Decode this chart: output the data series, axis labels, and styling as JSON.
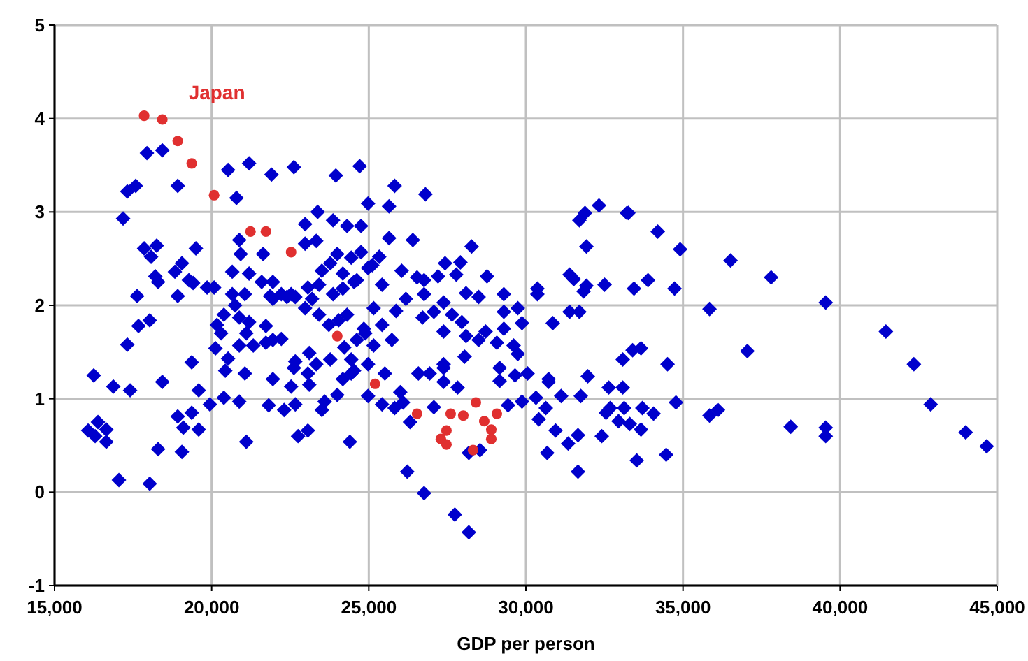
{
  "chart_data": {
    "type": "scatter",
    "xlabel": "GDP per person",
    "xlim": [
      15000,
      45000
    ],
    "xticks": [
      {
        "value": 15000,
        "label": "15,000"
      },
      {
        "value": 20000,
        "label": "20,000"
      },
      {
        "value": 25000,
        "label": "25,000"
      },
      {
        "value": 30000,
        "label": "30,000"
      },
      {
        "value": 35000,
        "label": "35,000"
      },
      {
        "value": 40000,
        "label": "40,000"
      },
      {
        "value": 45000,
        "label": "45,000"
      }
    ],
    "ylim": [
      -1,
      5
    ],
    "yticks": [
      -1,
      0,
      1,
      2,
      3,
      4,
      5
    ],
    "grid": true,
    "series": [
      {
        "color": "#0000cc",
        "marker": "diamond",
        "x": [
          17940,
          18430,
          17316,
          17583,
          18920,
          17183,
          20523,
          21191,
          21904,
          22617,
          23952,
          24710,
          20790,
          24977,
          23374,
          23863,
          20879,
          22973,
          24309,
          24754,
          17851,
          18251,
          18073,
          19499,
          20923,
          21637,
          22973,
          23329,
          23997,
          24442,
          24754,
          25111,
          23507,
          23774,
          24175,
          24531,
          18207,
          18296,
          18830,
          19053,
          19276,
          19409,
          20656,
          21191,
          21592,
          21948,
          19855,
          20078,
          20656,
          21057,
          21859,
          22216,
          22528,
          23062,
          23418,
          23863,
          24175,
          24620,
          24977,
          17628,
          18920,
          18029,
          17672,
          17316,
          16247,
          16871,
          17405,
          18430,
          19365,
          19588,
          19944,
          18920,
          19365,
          19098,
          19588,
          16069,
          16381,
          16648,
          16648,
          16292,
          18296,
          19053,
          17049,
          18029,
          21102,
          24398,
          20122,
          20523,
          20434,
          21057,
          20879,
          20389,
          21948,
          22528,
          23107,
          22661,
          22306,
          21815,
          22750,
          23062,
          23507,
          23997,
          24175,
          23596,
          24531,
          23774,
          23329,
          23062,
          22617,
          22661,
          23107,
          21726,
          21948,
          22216,
          21325,
          21102,
          20879,
          20300,
          20167,
          20389,
          20879,
          20745,
          21191,
          21726,
          21948,
          22394,
          22661,
          22973,
          23196,
          23418,
          23730,
          24042,
          24309,
          24843,
          24620,
          24220,
          24442,
          24977,
          24887,
          24442,
          24977,
          25823,
          26803,
          25645,
          32326,
          31881,
          31702,
          33217,
          31925,
          28273,
          31391,
          31524,
          32504,
          31925,
          31836,
          30366,
          30366,
          31391,
          31702,
          30856,
          29876,
          29743,
          33083,
          25645,
          26402,
          27428,
          27917,
          28763,
          29297,
          28496,
          28095,
          27783,
          27204,
          26759,
          26536,
          26046,
          25333,
          25422,
          26180,
          26759,
          27382,
          27650,
          27071,
          26714,
          25868,
          25155,
          25422,
          25734,
          25155,
          27382,
          27961,
          28095,
          28496,
          28718,
          29297,
          29609,
          29075,
          29743,
          28050,
          27382,
          29297,
          33396,
          25511,
          26580,
          26937,
          27382,
          27382,
          27828,
          26002,
          25422,
          25823,
          26091,
          27071,
          26313,
          26224,
          26759,
          27739,
          28184,
          28184,
          28540,
          29164,
          29164,
          29654,
          30054,
          30723,
          30723,
          31970,
          32637,
          31747,
          31123,
          30321,
          29876,
          29431,
          30634,
          30410,
          30945,
          31346,
          31658,
          32415,
          30678,
          31658,
          32549,
          32682,
          33262,
          34197,
          34909,
          36513,
          37805,
          39542,
          35844,
          41457,
          37048,
          42348,
          42882,
          43996,
          44664,
          39542,
          39542,
          38428,
          35844,
          36112,
          34775,
          34464,
          33529,
          33440,
          33886,
          34731,
          33663,
          34508,
          33083,
          33127,
          33707,
          34063,
          33306,
          33663,
          32949
        ],
        "values": [
          3.63,
          3.66,
          3.22,
          3.28,
          3.28,
          2.93,
          3.45,
          3.52,
          3.4,
          3.48,
          3.39,
          3.49,
          3.15,
          3.09,
          3.0,
          2.91,
          2.7,
          2.87,
          2.85,
          2.85,
          2.61,
          2.64,
          2.52,
          2.61,
          2.55,
          2.55,
          2.66,
          2.69,
          2.55,
          2.51,
          2.57,
          2.43,
          2.37,
          2.45,
          2.34,
          2.25,
          2.31,
          2.25,
          2.36,
          2.45,
          2.27,
          2.24,
          2.36,
          2.34,
          2.25,
          2.25,
          2.19,
          2.19,
          2.12,
          2.12,
          2.1,
          2.12,
          2.12,
          2.19,
          2.22,
          2.12,
          2.18,
          2.27,
          2.4,
          2.1,
          2.1,
          1.84,
          1.78,
          1.58,
          1.25,
          1.13,
          1.09,
          1.18,
          1.39,
          1.09,
          0.94,
          0.81,
          0.85,
          0.69,
          0.67,
          0.66,
          0.75,
          0.67,
          0.54,
          0.6,
          0.46,
          0.43,
          0.13,
          0.09,
          0.54,
          0.54,
          1.54,
          1.43,
          1.3,
          1.27,
          0.97,
          1.01,
          1.21,
          1.13,
          1.15,
          0.94,
          0.88,
          0.93,
          0.6,
          0.66,
          0.88,
          1.04,
          1.21,
          0.97,
          1.3,
          1.42,
          1.37,
          1.27,
          1.33,
          1.4,
          1.49,
          1.6,
          1.63,
          1.64,
          1.57,
          1.7,
          1.57,
          1.7,
          1.79,
          1.9,
          1.87,
          2.0,
          1.82,
          1.78,
          2.07,
          2.09,
          2.09,
          1.97,
          2.07,
          1.9,
          1.79,
          1.84,
          1.9,
          1.75,
          1.63,
          1.55,
          1.42,
          1.37,
          1.7,
          1.27,
          1.03,
          3.28,
          3.19,
          3.06,
          3.07,
          2.99,
          2.91,
          2.99,
          2.63,
          2.63,
          2.33,
          2.28,
          2.22,
          2.21,
          2.15,
          2.18,
          2.12,
          1.93,
          1.93,
          1.81,
          1.81,
          1.97,
          1.42,
          2.72,
          2.7,
          2.45,
          2.46,
          2.31,
          2.12,
          2.09,
          2.13,
          2.33,
          2.31,
          2.27,
          2.3,
          2.37,
          2.52,
          2.22,
          2.07,
          2.12,
          2.03,
          1.9,
          1.93,
          1.87,
          1.94,
          1.97,
          1.79,
          1.63,
          1.57,
          1.72,
          1.82,
          1.67,
          1.63,
          1.72,
          1.75,
          1.57,
          1.6,
          1.48,
          1.45,
          1.37,
          1.93,
          1.52,
          1.27,
          1.27,
          1.27,
          1.33,
          1.18,
          1.12,
          1.07,
          0.94,
          0.9,
          0.96,
          0.91,
          0.75,
          0.22,
          -0.01,
          -0.24,
          -0.43,
          0.42,
          0.45,
          1.33,
          1.19,
          1.25,
          1.27,
          1.21,
          1.18,
          1.24,
          1.12,
          1.03,
          1.03,
          1.01,
          0.97,
          0.93,
          0.9,
          0.78,
          0.66,
          0.52,
          0.61,
          0.6,
          0.42,
          0.22,
          0.85,
          0.9,
          2.99,
          2.79,
          2.6,
          2.48,
          2.3,
          2.03,
          1.96,
          1.72,
          1.51,
          1.37,
          0.94,
          0.64,
          0.49,
          0.69,
          0.6,
          0.7,
          0.82,
          0.88,
          0.96,
          0.4,
          0.34,
          2.18,
          2.27,
          2.18,
          1.54,
          1.37,
          1.12,
          0.9,
          0.9,
          0.84,
          0.73,
          0.67,
          0.76
        ]
      },
      {
        "name": "Japan",
        "color": "#e03030",
        "marker": "circle",
        "x": [
          17851,
          18430,
          18920,
          19365,
          20078,
          21236,
          21726,
          22528,
          23998,
          25200,
          26537,
          27294,
          27472,
          27472,
          27606,
          28007,
          28318,
          28408,
          28675,
          28898,
          28898,
          29076
        ],
        "values": [
          4.03,
          3.99,
          3.76,
          3.52,
          3.18,
          2.79,
          2.79,
          2.57,
          1.67,
          1.16,
          0.84,
          0.57,
          0.66,
          0.51,
          0.84,
          0.82,
          0.45,
          0.96,
          0.76,
          0.67,
          0.57,
          0.84
        ]
      }
    ]
  }
}
